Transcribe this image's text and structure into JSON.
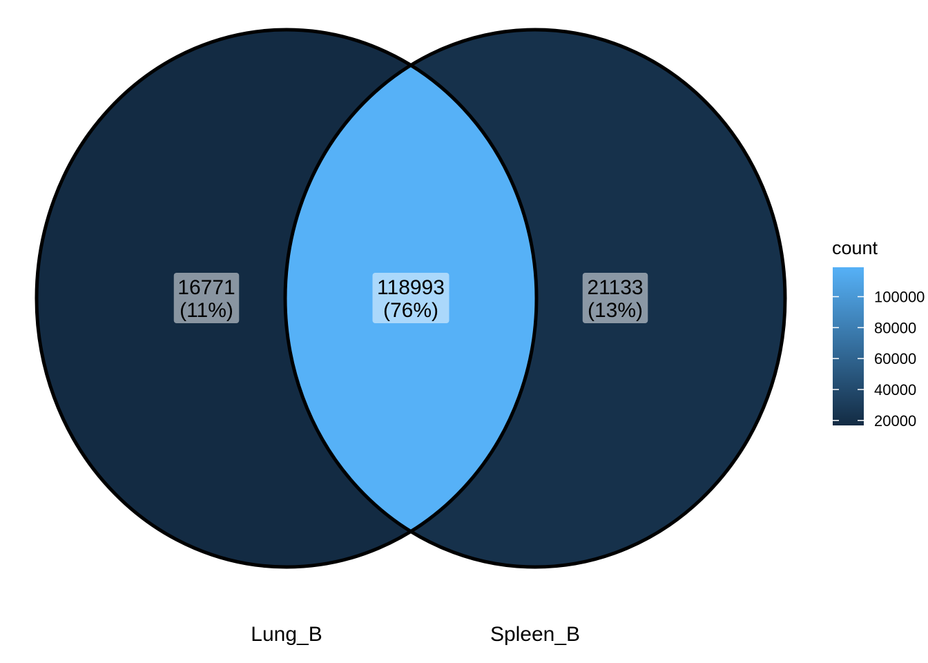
{
  "chart_data": {
    "type": "venn",
    "sets": [
      {
        "name": "Lung_B"
      },
      {
        "name": "Spleen_B"
      }
    ],
    "regions": [
      {
        "sets": [
          "Lung_B"
        ],
        "count": 16771,
        "count_label": "16771",
        "percent_label": "(11%)"
      },
      {
        "sets": [
          "Lung_B",
          "Spleen_B"
        ],
        "count": 118993,
        "count_label": "118993",
        "percent_label": "(76%)"
      },
      {
        "sets": [
          "Spleen_B"
        ],
        "count": 21133,
        "count_label": "21133",
        "percent_label": "(13%)"
      }
    ],
    "legend": {
      "title": "count",
      "placement": "right",
      "ticks": [
        20000,
        40000,
        60000,
        80000,
        100000
      ],
      "tick_labels": [
        "20000",
        "40000",
        "60000",
        "80000",
        "100000"
      ],
      "range": [
        16771,
        118993
      ],
      "colors": {
        "low": "#132B43",
        "high": "#56B1F7"
      }
    }
  }
}
